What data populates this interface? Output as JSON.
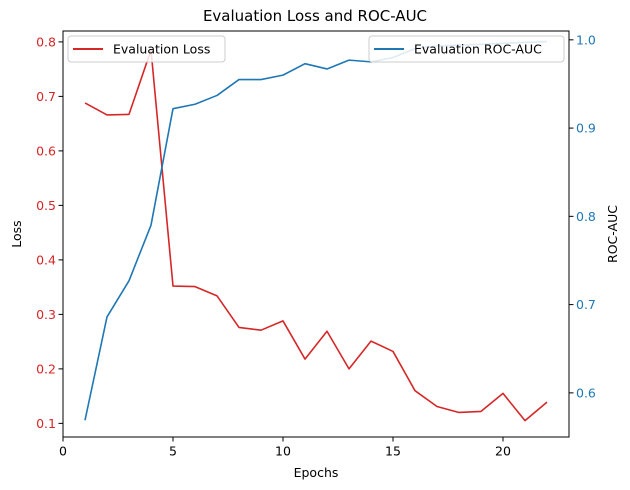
{
  "chart_data": {
    "type": "line",
    "title": "Evaluation Loss and ROC-AUC",
    "xlabel": "Epochs",
    "ylabel_left": "Loss",
    "ylabel_right": "ROC-AUC",
    "x": [
      1,
      2,
      3,
      4,
      5,
      6,
      7,
      8,
      9,
      10,
      11,
      12,
      13,
      14,
      15,
      16,
      17,
      18,
      19,
      20,
      21,
      22
    ],
    "xlim": [
      0,
      23
    ],
    "xticks": [
      0,
      5,
      10,
      15,
      20
    ],
    "ylim_left": [
      0.075,
      0.82
    ],
    "yticks_left": [
      0.1,
      0.2,
      0.3,
      0.4,
      0.5,
      0.6,
      0.7,
      0.8
    ],
    "ylim_right": [
      0.55,
      1.01
    ],
    "yticks_right": [
      0.6,
      0.7,
      0.8,
      0.9,
      1.0
    ],
    "grid": false,
    "series": [
      {
        "name": "Evaluation Loss",
        "axis": "left",
        "color": "#d62728",
        "values": [
          0.688,
          0.666,
          0.667,
          0.785,
          0.352,
          0.351,
          0.334,
          0.276,
          0.271,
          0.288,
          0.218,
          0.269,
          0.2,
          0.251,
          0.232,
          0.16,
          0.131,
          0.12,
          0.122,
          0.155,
          0.105,
          0.139
        ]
      },
      {
        "name": "Evaluation ROC-AUC",
        "axis": "right",
        "color": "#1f77b4",
        "values": [
          0.569,
          0.686,
          0.727,
          0.79,
          0.922,
          0.927,
          0.937,
          0.955,
          0.955,
          0.96,
          0.973,
          0.967,
          0.977,
          0.975,
          0.98,
          0.99,
          0.993,
          0.994,
          0.995,
          0.996,
          0.997,
          0.998
        ]
      }
    ],
    "legends": [
      {
        "placement": "upper-left",
        "entries": [
          "Evaluation Loss"
        ]
      },
      {
        "placement": "upper-right",
        "entries": [
          "Evaluation ROC-AUC"
        ]
      }
    ]
  }
}
